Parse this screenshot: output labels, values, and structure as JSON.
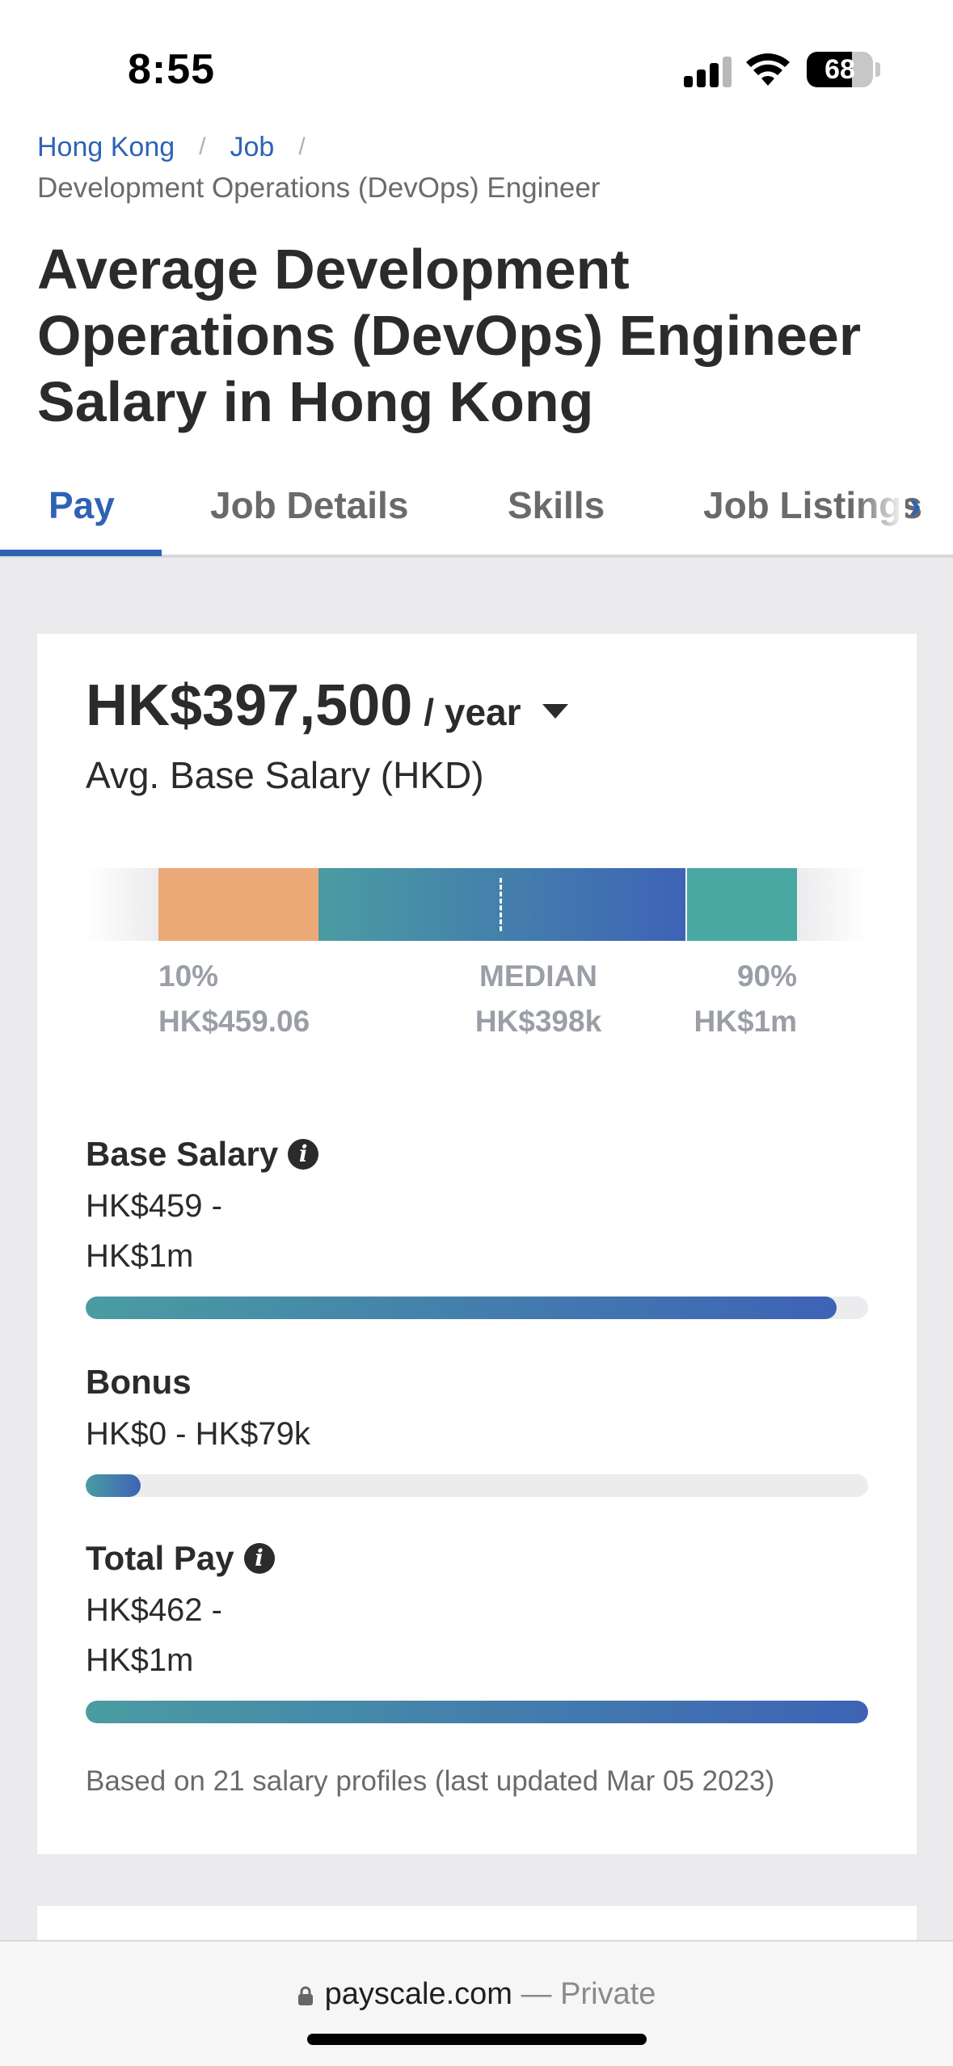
{
  "status_bar": {
    "time": "8:55",
    "battery": "68",
    "battery_level": 0.68
  },
  "breadcrumb": {
    "items": [
      "Hong Kong",
      "Job"
    ],
    "current": "Development Operations (DevOps) Engineer"
  },
  "page_title": "Average Development Operations (DevOps) Engineer Salary in Hong Kong",
  "tabs": [
    {
      "label": "Pay",
      "active": true
    },
    {
      "label": "Job Details",
      "active": false
    },
    {
      "label": "Skills",
      "active": false
    },
    {
      "label": "Job Listings",
      "active": false
    }
  ],
  "salary": {
    "amount": "HK$397,500",
    "period": "/ year",
    "label": "Avg. Base Salary (HKD)"
  },
  "distribution": {
    "p10_label": "10%",
    "p10_value": "HK$459.06",
    "median_label": "MEDIAN",
    "median_value": "HK$398k",
    "p90_label": "90%",
    "p90_value": "HK$1m"
  },
  "breakdown": [
    {
      "title": "Base Salary",
      "range_line1": "HK$459 -",
      "range_line2": "HK$1m",
      "fill": 0.96,
      "has_info": true
    },
    {
      "title": "Bonus",
      "range_line1": "HK$0 - HK$79k",
      "range_line2": "",
      "fill": 0.07,
      "has_info": false
    },
    {
      "title": "Total Pay",
      "range_line1": "HK$462 -",
      "range_line2": "HK$1m",
      "fill": 1.0,
      "has_info": true
    }
  ],
  "footnote": "Based on 21 salary profiles (last updated Mar 05 2023)",
  "url_bar": {
    "domain": "payscale.com",
    "suffix": "— Private"
  },
  "colors": {
    "accent": "#2e63b4",
    "low_segment": "#eca978",
    "high_segment": "#4aa8a2",
    "teal": "#4a9ca2"
  }
}
